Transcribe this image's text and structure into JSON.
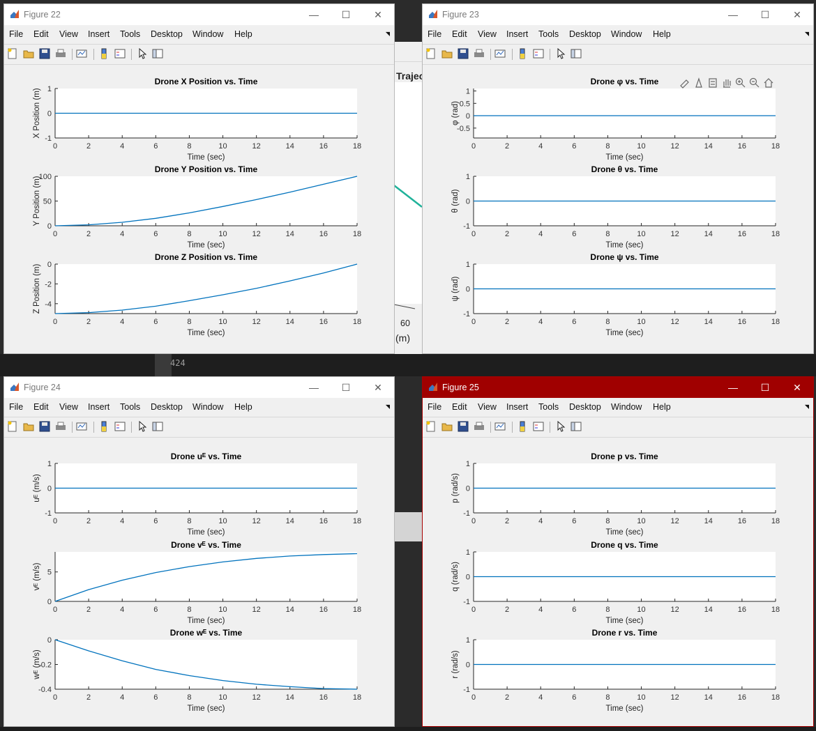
{
  "background": {
    "editor_line_number": "424",
    "peek_trajectory": "Trajec",
    "peek_axis_tick": "60",
    "peek_axis_unit": "(m)",
    "peek_menu": "ols"
  },
  "menus": [
    "File",
    "Edit",
    "View",
    "Insert",
    "Tools",
    "Desktop",
    "Window",
    "Help"
  ],
  "toolbar_icons": [
    "new-figure-icon",
    "open-file-icon",
    "save-icon",
    "print-icon",
    "link-plot-icon",
    "insert-colorbar-icon",
    "insert-legend-icon",
    "pointer-icon",
    "property-inspector-icon"
  ],
  "window_controls": {
    "minimize": "—",
    "maximize": "☐",
    "close": "✕"
  },
  "colors": {
    "line": "#0072BD",
    "active_titlebar": "#A00000",
    "window_bg": "#F0F0F0"
  },
  "windows": [
    {
      "title": "Figure 22",
      "active": false,
      "axes": [
        {
          "title": "Drone X Position vs. Time",
          "ylabel": "X Position (m)",
          "xlabel": "Time (sec)",
          "xticks": [
            "0",
            "2",
            "4",
            "6",
            "8",
            "10",
            "12",
            "14",
            "16",
            "18"
          ],
          "yticks": [
            "1",
            "0",
            "-1"
          ]
        },
        {
          "title": "Drone Y Position vs. Time",
          "ylabel": "Y Position (m)",
          "xlabel": "Time (sec)",
          "xticks": [
            "0",
            "2",
            "4",
            "6",
            "8",
            "10",
            "12",
            "14",
            "16",
            "18"
          ],
          "yticks": [
            "100",
            "50",
            "0"
          ]
        },
        {
          "title": "Drone Z Position vs. Time",
          "ylabel": "Z Position (m)",
          "xlabel": "Time (sec)",
          "xticks": [
            "0",
            "2",
            "4",
            "6",
            "8",
            "10",
            "12",
            "14",
            "16",
            "18"
          ],
          "yticks": [
            "0",
            "-2",
            "-4"
          ]
        }
      ]
    },
    {
      "title": "Figure 23",
      "active": false,
      "axes_toolbar": [
        "brush-icon",
        "data-tips-icon",
        "rotate-icon",
        "pan-icon",
        "zoom-in-icon",
        "zoom-out-icon",
        "home-icon"
      ],
      "axes": [
        {
          "title": "Drone φ vs. Time",
          "ylabel": "φ (rad)",
          "xlabel": "Time (sec)",
          "xticks": [
            "0",
            "2",
            "4",
            "6",
            "8",
            "10",
            "12",
            "14",
            "16",
            "18"
          ],
          "yticks": [
            "1",
            "0.5",
            "0",
            "-0.5"
          ]
        },
        {
          "title": "Drone θ vs. Time",
          "ylabel": "θ (rad)",
          "xlabel": "Time (sec)",
          "xticks": [
            "0",
            "2",
            "4",
            "6",
            "8",
            "10",
            "12",
            "14",
            "16",
            "18"
          ],
          "yticks": [
            "1",
            "0",
            "-1"
          ]
        },
        {
          "title": "Drone ψ vs. Time",
          "ylabel": "ψ (rad)",
          "xlabel": "Time (sec)",
          "xticks": [
            "0",
            "2",
            "4",
            "6",
            "8",
            "10",
            "12",
            "14",
            "16",
            "18"
          ],
          "yticks": [
            "1",
            "0",
            "-1"
          ]
        }
      ]
    },
    {
      "title": "Figure 24",
      "active": false,
      "axes": [
        {
          "title": "Drone uᴱ vs. Time",
          "ylabel": "uᴱ (m/s)",
          "xlabel": "Time (sec)",
          "xticks": [
            "0",
            "2",
            "4",
            "6",
            "8",
            "10",
            "12",
            "14",
            "16",
            "18"
          ],
          "yticks": [
            "1",
            "0",
            "-1"
          ]
        },
        {
          "title": "Drone vᴱ vs. Time",
          "ylabel": "vᴱ (m/s)",
          "xlabel": "Time (sec)",
          "xticks": [
            "0",
            "2",
            "4",
            "6",
            "8",
            "10",
            "12",
            "14",
            "16",
            "18"
          ],
          "yticks": [
            "5",
            "0"
          ]
        },
        {
          "title": "Drone wᴱ vs. Time",
          "ylabel": "wᴱ (m/s)",
          "xlabel": "Time (sec)",
          "xticks": [
            "0",
            "2",
            "4",
            "6",
            "8",
            "10",
            "12",
            "14",
            "16",
            "18"
          ],
          "yticks": [
            "0",
            "-0.2",
            "-0.4"
          ]
        }
      ]
    },
    {
      "title": "Figure 25",
      "active": true,
      "axes": [
        {
          "title": "Drone p vs. Time",
          "ylabel": "p (rad/s)",
          "xlabel": "Time (sec)",
          "xticks": [
            "0",
            "2",
            "4",
            "6",
            "8",
            "10",
            "12",
            "14",
            "16",
            "18"
          ],
          "yticks": [
            "1",
            "0",
            "-1"
          ]
        },
        {
          "title": "Drone q vs. Time",
          "ylabel": "q (rad/s)",
          "xlabel": "Time (sec)",
          "xticks": [
            "0",
            "2",
            "4",
            "6",
            "8",
            "10",
            "12",
            "14",
            "16",
            "18"
          ],
          "yticks": [
            "1",
            "0",
            "-1"
          ]
        },
        {
          "title": "Drone r vs. Time",
          "ylabel": "r (rad/s)",
          "xlabel": "Time (sec)",
          "xticks": [
            "0",
            "2",
            "4",
            "6",
            "8",
            "10",
            "12",
            "14",
            "16",
            "18"
          ],
          "yticks": [
            "1",
            "0",
            "-1"
          ]
        }
      ]
    }
  ],
  "chart_data": [
    {
      "type": "line",
      "figure": "Figure 22",
      "title": "Drone X Position vs. Time",
      "xlabel": "Time (sec)",
      "ylabel": "X Position (m)",
      "xlim": [
        0,
        18
      ],
      "ylim": [
        -1,
        1
      ],
      "x": [
        0,
        18
      ],
      "series": [
        {
          "values": [
            0,
            0
          ]
        }
      ]
    },
    {
      "type": "line",
      "figure": "Figure 22",
      "title": "Drone Y Position vs. Time",
      "xlabel": "Time (sec)",
      "ylabel": "Y Position (m)",
      "xlim": [
        0,
        18
      ],
      "ylim": [
        0,
        100
      ],
      "x": [
        0,
        2,
        4,
        6,
        8,
        10,
        12,
        14,
        16,
        18
      ],
      "series": [
        {
          "values": [
            0,
            2,
            7,
            15,
            26,
            39,
            53,
            68,
            84,
            100
          ]
        }
      ]
    },
    {
      "type": "line",
      "figure": "Figure 22",
      "title": "Drone Z Position vs. Time",
      "xlabel": "Time (sec)",
      "ylabel": "Z Position (m)",
      "xlim": [
        0,
        18
      ],
      "ylim": [
        -5,
        0
      ],
      "x": [
        0,
        2,
        4,
        6,
        8,
        10,
        12,
        14,
        16,
        18
      ],
      "series": [
        {
          "values": [
            -5,
            -4.9,
            -4.65,
            -4.25,
            -3.7,
            -3.1,
            -2.45,
            -1.7,
            -0.9,
            0
          ]
        }
      ]
    },
    {
      "type": "line",
      "figure": "Figure 23",
      "title": "Drone φ vs. Time",
      "xlabel": "Time (sec)",
      "ylabel": "φ (rad)",
      "xlim": [
        0,
        18
      ],
      "ylim": [
        -0.9,
        1.1
      ],
      "x": [
        0,
        18
      ],
      "series": [
        {
          "values": [
            0,
            0
          ]
        }
      ]
    },
    {
      "type": "line",
      "figure": "Figure 23",
      "title": "Drone θ vs. Time",
      "xlabel": "Time (sec)",
      "ylabel": "θ (rad)",
      "xlim": [
        0,
        18
      ],
      "ylim": [
        -1,
        1
      ],
      "x": [
        0,
        18
      ],
      "series": [
        {
          "values": [
            0,
            0
          ]
        }
      ]
    },
    {
      "type": "line",
      "figure": "Figure 23",
      "title": "Drone ψ vs. Time",
      "xlabel": "Time (sec)",
      "ylabel": "ψ (rad)",
      "xlim": [
        0,
        18
      ],
      "ylim": [
        -1,
        1
      ],
      "x": [
        0,
        18
      ],
      "series": [
        {
          "values": [
            0,
            0
          ]
        }
      ]
    },
    {
      "type": "line",
      "figure": "Figure 24",
      "title": "Drone uᴱ vs. Time",
      "xlabel": "Time (sec)",
      "ylabel": "uᴱ (m/s)",
      "xlim": [
        0,
        18
      ],
      "ylim": [
        -1,
        1
      ],
      "x": [
        0,
        18
      ],
      "series": [
        {
          "values": [
            0,
            0
          ]
        }
      ]
    },
    {
      "type": "line",
      "figure": "Figure 24",
      "title": "Drone vᴱ vs. Time",
      "xlabel": "Time (sec)",
      "ylabel": "vᴱ (m/s)",
      "xlim": [
        0,
        18
      ],
      "ylim": [
        0,
        8.4
      ],
      "x": [
        0,
        2,
        4,
        6,
        8,
        10,
        12,
        14,
        16,
        18
      ],
      "series": [
        {
          "values": [
            0,
            2.0,
            3.6,
            4.9,
            5.9,
            6.7,
            7.3,
            7.7,
            7.95,
            8.1
          ]
        }
      ]
    },
    {
      "type": "line",
      "figure": "Figure 24",
      "title": "Drone wᴱ vs. Time",
      "xlabel": "Time (sec)",
      "ylabel": "wᴱ (m/s)",
      "xlim": [
        0,
        18
      ],
      "ylim": [
        -0.4,
        0
      ],
      "x": [
        0,
        2,
        4,
        6,
        8,
        10,
        12,
        14,
        16,
        18
      ],
      "series": [
        {
          "values": [
            0,
            -0.09,
            -0.17,
            -0.24,
            -0.29,
            -0.33,
            -0.36,
            -0.38,
            -0.395,
            -0.4
          ]
        }
      ]
    },
    {
      "type": "line",
      "figure": "Figure 25",
      "title": "Drone p vs. Time",
      "xlabel": "Time (sec)",
      "ylabel": "p (rad/s)",
      "xlim": [
        0,
        18
      ],
      "ylim": [
        -1,
        1
      ],
      "x": [
        0,
        18
      ],
      "series": [
        {
          "values": [
            0,
            0
          ]
        }
      ]
    },
    {
      "type": "line",
      "figure": "Figure 25",
      "title": "Drone q vs. Time",
      "xlabel": "Time (sec)",
      "ylabel": "q (rad/s)",
      "xlim": [
        0,
        18
      ],
      "ylim": [
        -1,
        1
      ],
      "x": [
        0,
        18
      ],
      "series": [
        {
          "values": [
            0,
            0
          ]
        }
      ]
    },
    {
      "type": "line",
      "figure": "Figure 25",
      "title": "Drone r vs. Time",
      "xlabel": "Time (sec)",
      "ylabel": "r (rad/s)",
      "xlim": [
        0,
        18
      ],
      "ylim": [
        -1,
        1
      ],
      "x": [
        0,
        18
      ],
      "series": [
        {
          "values": [
            0,
            0
          ]
        }
      ]
    }
  ]
}
